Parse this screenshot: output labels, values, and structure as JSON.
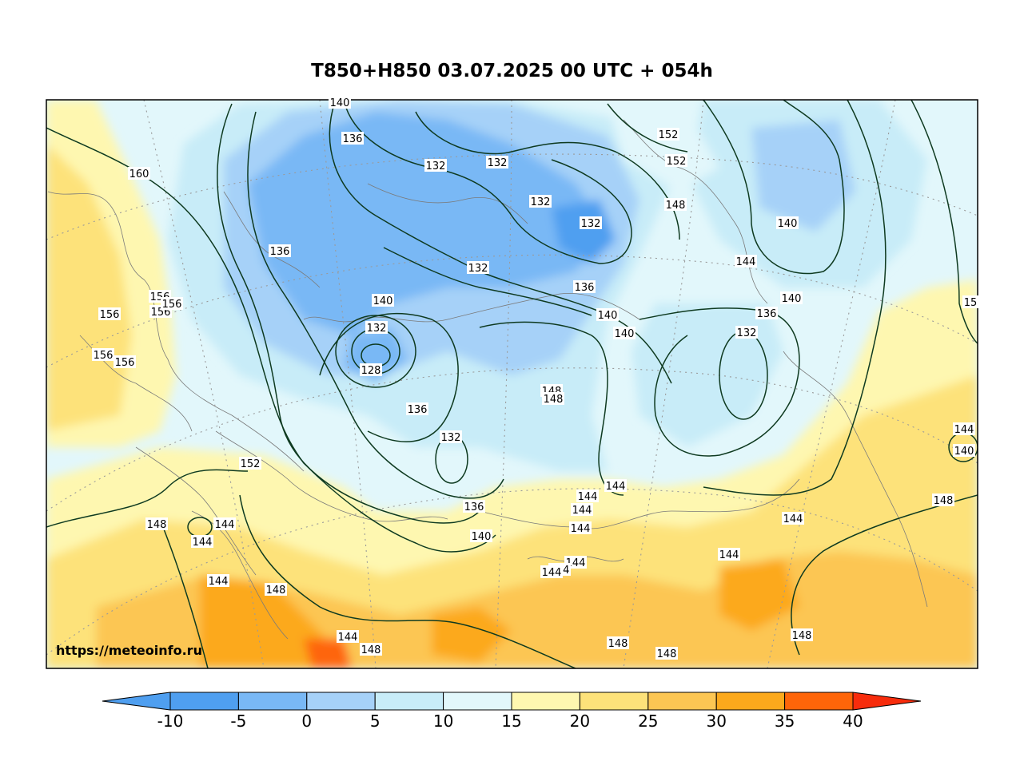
{
  "title": "T850+H850 03.07.2025 00 UTC + 054h",
  "watermark": "https://meteoinfo.ru",
  "colorbar": {
    "ticks": [
      "-10",
      "-5",
      "0",
      "5",
      "10",
      "15",
      "20",
      "25",
      "30",
      "35",
      "40"
    ],
    "bins": [
      {
        "from": -15,
        "to": -10,
        "color": "#4f9ff0"
      },
      {
        "from": -10,
        "to": -5,
        "color": "#4f9ff0"
      },
      {
        "from": -5,
        "to": 0,
        "color": "#79b8f5"
      },
      {
        "from": 0,
        "to": 5,
        "color": "#a6d1f8"
      },
      {
        "from": 5,
        "to": 10,
        "color": "#c8ecf8"
      },
      {
        "from": 10,
        "to": 15,
        "color": "#e2f7fb"
      },
      {
        "from": 15,
        "to": 20,
        "color": "#fef7b0"
      },
      {
        "from": 20,
        "to": 25,
        "color": "#fde27a"
      },
      {
        "from": 25,
        "to": 30,
        "color": "#fcc653"
      },
      {
        "from": 30,
        "to": 35,
        "color": "#fca91c"
      },
      {
        "from": 35,
        "to": 40,
        "color": "#fe6509"
      },
      {
        "from": 40,
        "to": 45,
        "color": "#f72c0c"
      }
    ]
  },
  "contour_labels": [
    "140",
    "136",
    "132",
    "132",
    "132",
    "132",
    "152",
    "152",
    "148",
    "140",
    "160",
    "136",
    "132",
    "136",
    "140",
    "144",
    "140",
    "156",
    "156",
    "156",
    "156",
    "156",
    "156",
    "140",
    "132",
    "128",
    "136",
    "140",
    "132",
    "148",
    "148",
    "136",
    "132",
    "144",
    "140",
    "152",
    "136",
    "140",
    "144",
    "144",
    "144",
    "148",
    "148",
    "144",
    "144",
    "144",
    "144",
    "144",
    "144",
    "148",
    "144",
    "144",
    "144",
    "144",
    "148",
    "148",
    "148",
    "148",
    "15"
  ]
}
